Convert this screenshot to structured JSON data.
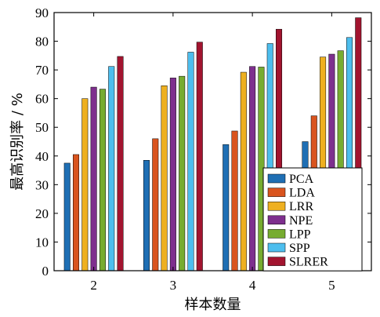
{
  "chart_data": {
    "type": "bar",
    "title": "",
    "xlabel": "样本数量",
    "ylabel": "最高识别率 / %",
    "ylim": [
      0,
      90
    ],
    "yticks": [
      0,
      10,
      20,
      30,
      40,
      50,
      60,
      70,
      80,
      90
    ],
    "categories": [
      "2",
      "3",
      "4",
      "5"
    ],
    "grid": false,
    "legend_position": "bottom-right",
    "series": [
      {
        "name": "PCA",
        "color": "#1f6fb4",
        "values": [
          37.5,
          38.5,
          44.0,
          45.0
        ]
      },
      {
        "name": "LDA",
        "color": "#d9541e",
        "values": [
          40.5,
          46.0,
          48.7,
          54.0
        ]
      },
      {
        "name": "LRR",
        "color": "#eeb020",
        "values": [
          60.0,
          64.5,
          69.2,
          74.5
        ]
      },
      {
        "name": "NPE",
        "color": "#7e2f8e",
        "values": [
          64.0,
          67.2,
          71.2,
          75.5
        ]
      },
      {
        "name": "LPP",
        "color": "#77ac30",
        "values": [
          63.3,
          67.8,
          71.0,
          76.7
        ]
      },
      {
        "name": "SPP",
        "color": "#4dbeee",
        "values": [
          71.2,
          76.2,
          79.2,
          81.3
        ]
      },
      {
        "name": "SLRER",
        "color": "#a2142f",
        "values": [
          74.7,
          79.7,
          84.2,
          88.2
        ]
      }
    ]
  }
}
